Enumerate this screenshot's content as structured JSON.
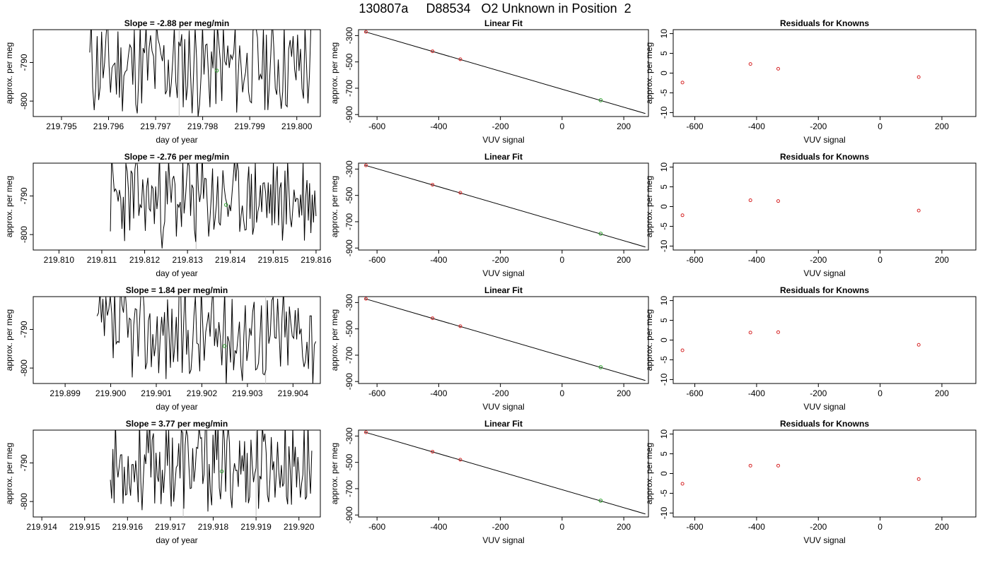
{
  "page": {
    "title": "130807a     D88534   O2 Unknown in Position  2"
  },
  "colors": {
    "axis": "#000000",
    "trace": "#000000",
    "known_point": "#d62728",
    "unknown_point": "#2ca02c",
    "vertical_marker": "#bfbfbf"
  },
  "chart_data": [
    {
      "type": "line",
      "row": 1,
      "title": "Slope =  -2.88  per meg/min",
      "xlabel": "day of year",
      "ylabel": "approx. per meg",
      "xlim": [
        219.7944,
        219.8005
      ],
      "ylim": [
        -804,
        -781.5
      ],
      "xticks": [
        "219.795",
        "219.796",
        "219.797",
        "219.798",
        "219.799",
        "219.800"
      ],
      "xtick_values": [
        219.795,
        219.796,
        219.797,
        219.798,
        219.799,
        219.8
      ],
      "yticks": [
        "-790",
        "-800"
      ],
      "ytick_values": [
        -790,
        -800
      ],
      "vlines": [
        219.7975
      ],
      "unknown_point": {
        "x": 219.7983,
        "y": -792.1
      },
      "trace": {
        "x_start": 219.7956,
        "x_end": 219.8003,
        "points": 150,
        "seed": 11,
        "mean": -791,
        "amp": 12
      }
    },
    {
      "type": "scatter",
      "row": 1,
      "title": "Linear Fit",
      "xlabel": "VUV signal",
      "ylabel": "approx. per meg",
      "xlim": [
        -660,
        280
      ],
      "ylim": [
        -915,
        -255
      ],
      "xticks": [
        "-600",
        "-400",
        "-200",
        "0",
        "200"
      ],
      "xtick_values": [
        -600,
        -400,
        -200,
        0,
        200
      ],
      "yticks": [
        "-300",
        "-500",
        "-700",
        "-900"
      ],
      "ytick_values": [
        -300,
        -500,
        -700,
        -900
      ],
      "fit_line": {
        "x": [
          -640,
          270
        ],
        "y": [
          -270,
          -892
        ]
      },
      "known_points": {
        "x": [
          -636,
          -420,
          -330
        ],
        "y": [
          -272,
          -419,
          -480
        ]
      },
      "unknown_point": {
        "x": 125,
        "y": -791
      }
    },
    {
      "type": "scatter",
      "row": 1,
      "title": "Residuals for Knowns",
      "xlabel": "VUV signal",
      "ylabel": "approx. per meg",
      "xlim": [
        -670,
        310
      ],
      "ylim": [
        -11,
        11
      ],
      "xticks": [
        "-600",
        "-400",
        "-200",
        "0",
        "200"
      ],
      "xtick_values": [
        -600,
        -400,
        -200,
        0,
        200
      ],
      "yticks": [
        "10",
        "5",
        "0",
        "-5",
        "-10"
      ],
      "ytick_values": [
        10,
        5,
        0,
        -5,
        -10
      ],
      "points": {
        "x": [
          -640,
          -420,
          -330,
          125
        ],
        "y": [
          -2.4,
          2.3,
          1.1,
          -1.0
        ]
      }
    },
    {
      "type": "line",
      "row": 2,
      "title": "Slope =  -2.76  per meg/min",
      "xlabel": "day of year",
      "ylabel": "approx. per meg",
      "xlim": [
        219.8094,
        219.8161
      ],
      "ylim": [
        -804,
        -781.5
      ],
      "xticks": [
        "219.810",
        "219.811",
        "219.812",
        "219.813",
        "219.814",
        "219.815",
        "219.816"
      ],
      "xtick_values": [
        219.81,
        219.811,
        219.812,
        219.813,
        219.814,
        219.815,
        219.816
      ],
      "yticks": [
        "-790",
        "-800"
      ],
      "ytick_values": [
        -790,
        -800
      ],
      "vlines": [
        219.8132
      ],
      "unknown_point": {
        "x": 219.8139,
        "y": -792.3
      },
      "trace": {
        "x_start": 219.8112,
        "x_end": 219.816,
        "points": 160,
        "seed": 23,
        "mean": -791,
        "amp": 11
      }
    },
    {
      "type": "scatter",
      "row": 2,
      "title": "Linear Fit",
      "xlabel": "VUV signal",
      "ylabel": "approx. per meg",
      "xlim": [
        -660,
        280
      ],
      "ylim": [
        -915,
        -255
      ],
      "xticks": [
        "-600",
        "-400",
        "-200",
        "0",
        "200"
      ],
      "xtick_values": [
        -600,
        -400,
        -200,
        0,
        200
      ],
      "yticks": [
        "-300",
        "-500",
        "-700",
        "-900"
      ],
      "ytick_values": [
        -300,
        -500,
        -700,
        -900
      ],
      "fit_line": {
        "x": [
          -640,
          270
        ],
        "y": [
          -270,
          -892
        ]
      },
      "known_points": {
        "x": [
          -636,
          -420,
          -330
        ],
        "y": [
          -272,
          -419,
          -480
        ]
      },
      "unknown_point": {
        "x": 125,
        "y": -791
      }
    },
    {
      "type": "scatter",
      "row": 2,
      "title": "Residuals for Knowns",
      "xlabel": "VUV signal",
      "ylabel": "approx. per meg",
      "xlim": [
        -670,
        310
      ],
      "ylim": [
        -11,
        11
      ],
      "xticks": [
        "-600",
        "-400",
        "-200",
        "0",
        "200"
      ],
      "xtick_values": [
        -600,
        -400,
        -200,
        0,
        200
      ],
      "yticks": [
        "10",
        "5",
        "0",
        "-5",
        "-10"
      ],
      "ytick_values": [
        10,
        5,
        0,
        -5,
        -10
      ],
      "points": {
        "x": [
          -640,
          -420,
          -330,
          125
        ],
        "y": [
          -2.2,
          1.6,
          1.4,
          -1.0
        ]
      }
    },
    {
      "type": "line",
      "row": 3,
      "title": "Slope =  1.84  per meg/min",
      "xlabel": "day of year",
      "ylabel": "approx. per meg",
      "xlim": [
        219.8983,
        219.9046
      ],
      "ylim": [
        -804,
        -781.5
      ],
      "xticks": [
        "219.899",
        "219.900",
        "219.901",
        "219.902",
        "219.903",
        "219.904"
      ],
      "xtick_values": [
        219.899,
        219.9,
        219.901,
        219.902,
        219.903,
        219.904
      ],
      "yticks": [
        "-790",
        "-800"
      ],
      "ytick_values": [
        -790,
        -800
      ],
      "vlines": [
        219.9034
      ],
      "unknown_point": {
        "x": 219.9025,
        "y": -794.3
      },
      "trace": {
        "x_start": 219.8997,
        "x_end": 219.9045,
        "points": 150,
        "seed": 37,
        "mean": -791,
        "amp": 12
      }
    },
    {
      "type": "scatter",
      "row": 3,
      "title": "Linear Fit",
      "xlabel": "VUV signal",
      "ylabel": "approx. per meg",
      "xlim": [
        -660,
        280
      ],
      "ylim": [
        -915,
        -255
      ],
      "xticks": [
        "-600",
        "-400",
        "-200",
        "0",
        "200"
      ],
      "xtick_values": [
        -600,
        -400,
        -200,
        0,
        200
      ],
      "yticks": [
        "-300",
        "-500",
        "-700",
        "-900"
      ],
      "ytick_values": [
        -300,
        -500,
        -700,
        -900
      ],
      "fit_line": {
        "x": [
          -640,
          270
        ],
        "y": [
          -270,
          -892
        ]
      },
      "known_points": {
        "x": [
          -636,
          -420,
          -330
        ],
        "y": [
          -272,
          -419,
          -480
        ]
      },
      "unknown_point": {
        "x": 125,
        "y": -791
      }
    },
    {
      "type": "scatter",
      "row": 3,
      "title": "Residuals for Knowns",
      "xlabel": "VUV signal",
      "ylabel": "approx. per meg",
      "xlim": [
        -670,
        310
      ],
      "ylim": [
        -11,
        11
      ],
      "xticks": [
        "-600",
        "-400",
        "-200",
        "0",
        "200"
      ],
      "xtick_values": [
        -600,
        -400,
        -200,
        0,
        200
      ],
      "yticks": [
        "10",
        "5",
        "0",
        "-5",
        "-10"
      ],
      "ytick_values": [
        10,
        5,
        0,
        -5,
        -10
      ],
      "points": {
        "x": [
          -640,
          -420,
          -330,
          125
        ],
        "y": [
          -2.6,
          1.9,
          2.0,
          -1.2
        ]
      }
    },
    {
      "type": "line",
      "row": 4,
      "title": "Slope =  3.77  per meg/min",
      "xlabel": "day of year",
      "ylabel": "approx. per meg",
      "xlim": [
        219.9138,
        219.9205
      ],
      "ylim": [
        -804,
        -781.5
      ],
      "xticks": [
        "219.914",
        "219.915",
        "219.916",
        "219.917",
        "219.918",
        "219.919",
        "219.920"
      ],
      "xtick_values": [
        219.914,
        219.915,
        219.916,
        219.917,
        219.918,
        219.919,
        219.92
      ],
      "yticks": [
        "-790",
        "-800"
      ],
      "ytick_values": [
        -790,
        -800
      ],
      "vlines": [
        219.9173,
        219.919
      ],
      "unknown_point": {
        "x": 219.9182,
        "y": -792.2
      },
      "trace": {
        "x_start": 219.9156,
        "x_end": 219.9203,
        "points": 160,
        "seed": 53,
        "mean": -790.5,
        "amp": 11
      }
    },
    {
      "type": "scatter",
      "row": 4,
      "title": "Linear Fit",
      "xlabel": "VUV signal",
      "ylabel": "approx. per meg",
      "xlim": [
        -660,
        280
      ],
      "ylim": [
        -915,
        -255
      ],
      "xticks": [
        "-600",
        "-400",
        "-200",
        "0",
        "200"
      ],
      "xtick_values": [
        -600,
        -400,
        -200,
        0,
        200
      ],
      "yticks": [
        "-300",
        "-500",
        "-700",
        "-900"
      ],
      "ytick_values": [
        -300,
        -500,
        -700,
        -900
      ],
      "fit_line": {
        "x": [
          -640,
          270
        ],
        "y": [
          -270,
          -892
        ]
      },
      "known_points": {
        "x": [
          -636,
          -420,
          -330
        ],
        "y": [
          -272,
          -419,
          -480
        ]
      },
      "unknown_point": {
        "x": 125,
        "y": -791
      }
    },
    {
      "type": "scatter",
      "row": 4,
      "title": "Residuals for Knowns",
      "xlabel": "VUV signal",
      "ylabel": "approx. per meg",
      "xlim": [
        -670,
        310
      ],
      "ylim": [
        -11,
        11
      ],
      "xticks": [
        "-600",
        "-400",
        "-200",
        "0",
        "200"
      ],
      "xtick_values": [
        -600,
        -400,
        -200,
        0,
        200
      ],
      "yticks": [
        "10",
        "5",
        "0",
        "-5",
        "-10"
      ],
      "ytick_values": [
        10,
        5,
        0,
        -5,
        -10
      ],
      "points": {
        "x": [
          -640,
          -420,
          -330,
          125
        ],
        "y": [
          -2.6,
          2.0,
          2.0,
          -1.4
        ]
      }
    }
  ]
}
